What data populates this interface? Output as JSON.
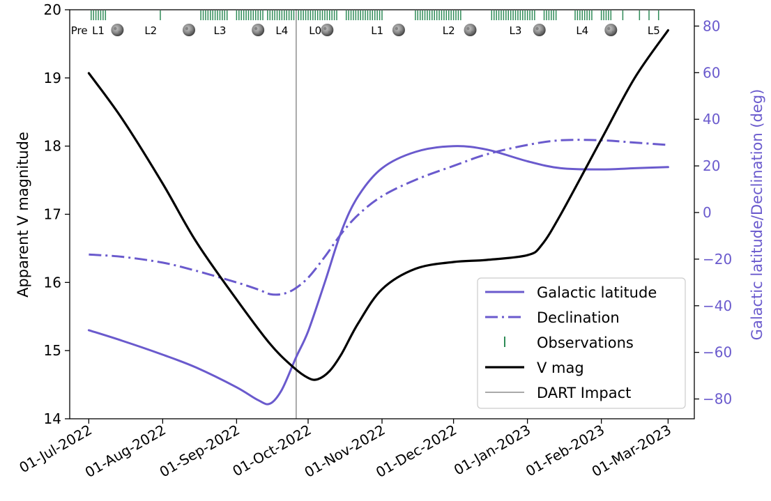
{
  "chart_data": {
    "type": "line",
    "xlabel": "",
    "ylabel_left": "Apparent V magnitude",
    "ylabel_right": "Galactic latitude/Declination (deg)",
    "x_range": [
      "2022-06-23",
      "2023-03-12"
    ],
    "ylim_left": [
      14,
      20
    ],
    "ylim_right": [
      -88.5,
      87
    ],
    "x_ticks": [
      "01-Jul-2022",
      "01-Aug-2022",
      "01-Sep-2022",
      "01-Oct-2022",
      "01-Nov-2022",
      "01-Dec-2022",
      "01-Jan-2023",
      "01-Feb-2023",
      "01-Mar-2023"
    ],
    "x_tick_dates": [
      "2022-07-01",
      "2022-08-01",
      "2022-09-01",
      "2022-10-01",
      "2022-11-01",
      "2022-12-01",
      "2023-01-01",
      "2023-02-01",
      "2023-03-01"
    ],
    "y_left_ticks": [
      "14",
      "15",
      "16",
      "17",
      "18",
      "19",
      "20"
    ],
    "y_right_ticks": [
      "−80",
      "−60",
      "−40",
      "−20",
      "0",
      "20",
      "40",
      "60",
      "80"
    ],
    "y_right_tick_values": [
      -80,
      -60,
      -40,
      -20,
      0,
      20,
      40,
      60,
      80
    ],
    "grid": false,
    "legend_position": "lower-right",
    "colors": {
      "galactic": "#6a5acd",
      "declination": "#6a5acd",
      "vmag": "#000000",
      "observations": "#2e8b57",
      "dart": "#a9a9a9",
      "right_axis": "#6a5acd"
    },
    "series": [
      {
        "name": "Galactic latitude",
        "axis": "right",
        "style": "solid",
        "x": [
          "2022-07-01",
          "2022-07-15",
          "2022-08-01",
          "2022-08-15",
          "2022-09-01",
          "2022-09-10",
          "2022-09-15",
          "2022-09-20",
          "2022-09-26",
          "2022-10-01",
          "2022-10-08",
          "2022-10-15",
          "2022-10-22",
          "2022-11-01",
          "2022-11-15",
          "2022-12-01",
          "2022-12-15",
          "2023-01-01",
          "2023-01-15",
          "2023-02-01",
          "2023-02-15",
          "2023-03-01"
        ],
        "y": [
          -50.5,
          -55,
          -61,
          -66.5,
          -75,
          -80.5,
          -82,
          -76,
          -62,
          -51,
          -30,
          -8,
          7,
          19,
          26,
          28.5,
          27,
          22,
          19,
          18.5,
          19,
          19.5
        ]
      },
      {
        "name": "Declination",
        "axis": "right",
        "style": "dashed",
        "x": [
          "2022-07-01",
          "2022-07-15",
          "2022-08-01",
          "2022-08-15",
          "2022-09-01",
          "2022-09-10",
          "2022-09-15",
          "2022-09-20",
          "2022-09-25",
          "2022-10-01",
          "2022-10-08",
          "2022-10-15",
          "2022-10-22",
          "2022-11-01",
          "2022-11-15",
          "2022-12-01",
          "2022-12-15",
          "2023-01-01",
          "2023-01-15",
          "2023-02-01",
          "2023-02-15",
          "2023-03-01"
        ],
        "y": [
          -18,
          -19,
          -21.5,
          -25,
          -30,
          -33,
          -35,
          -35,
          -33,
          -28,
          -19,
          -9,
          -1,
          7,
          14,
          20,
          25,
          29,
          31,
          31,
          30,
          29
        ]
      },
      {
        "name": "V mag",
        "axis": "left",
        "style": "solid",
        "x": [
          "2022-07-01",
          "2022-07-15",
          "2022-08-01",
          "2022-08-15",
          "2022-09-01",
          "2022-09-15",
          "2022-09-25",
          "2022-10-01",
          "2022-10-05",
          "2022-10-10",
          "2022-10-15",
          "2022-10-22",
          "2022-11-01",
          "2022-11-15",
          "2022-12-01",
          "2022-12-15",
          "2023-01-01",
          "2023-01-07",
          "2023-01-15",
          "2023-02-01",
          "2023-02-15",
          "2023-03-01"
        ],
        "y": [
          19.07,
          18.4,
          17.45,
          16.6,
          15.75,
          15.1,
          14.75,
          14.6,
          14.58,
          14.7,
          14.95,
          15.4,
          15.9,
          16.2,
          16.3,
          16.33,
          16.4,
          16.55,
          17.0,
          18.1,
          19.0,
          19.7
        ]
      }
    ],
    "dart_impact": {
      "name": "DART Impact",
      "date": "2022-09-26"
    },
    "observations": {
      "name": "Observations",
      "ranges": [
        [
          "2022-07-02",
          "2022-07-08"
        ],
        [
          "2022-07-31",
          "2022-07-31"
        ],
        [
          "2022-08-17",
          "2022-08-28"
        ],
        [
          "2022-09-01",
          "2022-09-12"
        ],
        [
          "2022-09-14",
          "2022-10-13"
        ],
        [
          "2022-10-17",
          "2022-11-01"
        ],
        [
          "2022-11-15",
          "2022-12-04"
        ],
        [
          "2022-12-17",
          "2023-01-04"
        ],
        [
          "2023-01-08",
          "2023-01-13"
        ],
        [
          "2023-01-21",
          "2023-01-28"
        ],
        [
          "2023-02-01",
          "2023-02-05"
        ]
      ],
      "singles": [
        "2023-02-10",
        "2023-02-17",
        "2023-02-21",
        "2023-02-25"
      ]
    },
    "phase_labels": [
      {
        "text": "Pre",
        "date": "2022-06-27"
      },
      {
        "text": "L1",
        "date": "2022-07-05"
      },
      {
        "text": "L2",
        "date": "2022-07-27"
      },
      {
        "text": "L3",
        "date": "2022-08-25"
      },
      {
        "text": "L4",
        "date": "2022-09-20"
      },
      {
        "text": "L0",
        "date": "2022-10-04"
      },
      {
        "text": "L1",
        "date": "2022-10-30"
      },
      {
        "text": "L2",
        "date": "2022-11-29"
      },
      {
        "text": "L3",
        "date": "2022-12-27"
      },
      {
        "text": "L4",
        "date": "2023-01-24"
      },
      {
        "text": "L5",
        "date": "2023-02-23"
      }
    ],
    "moon_icons": [
      "2022-07-13",
      "2022-08-12",
      "2022-09-10",
      "2022-10-09",
      "2022-11-08",
      "2022-12-08",
      "2023-01-06",
      "2023-02-05"
    ]
  }
}
